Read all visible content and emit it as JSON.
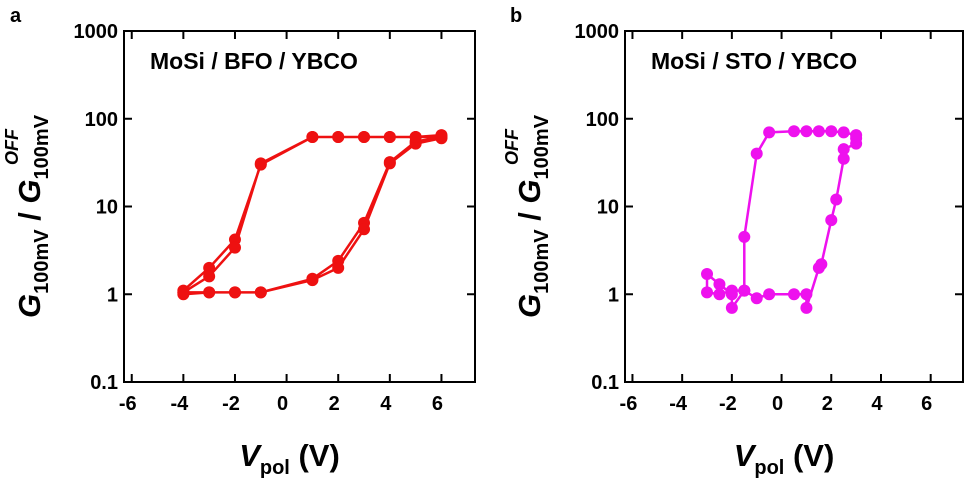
{
  "chart_data": [
    {
      "type": "line",
      "panel_label": "a",
      "title": "MoSi / BFO / YBCO",
      "x_label": [
        "V",
        "pol",
        " (V)"
      ],
      "y_label": [
        "G",
        "100mV",
        " / ",
        "G",
        "100mV",
        "OFF"
      ],
      "log_y": true,
      "xlim": [
        -6.3,
        7.3
      ],
      "ylim": [
        0.1,
        1000
      ],
      "xticks": [
        -6,
        -4,
        -2,
        0,
        2,
        4,
        6
      ],
      "yticks": [
        0.1,
        1,
        10,
        100,
        1000
      ],
      "series": [
        {
          "name": "MoSi / BFO / YBCO",
          "color": "#ee1111",
          "x": [
            6,
            5,
            4,
            3,
            2,
            1,
            -1,
            -2,
            -3,
            -4,
            -4,
            -3,
            -2,
            -1,
            1,
            2,
            3,
            4,
            5,
            6,
            6,
            5,
            4,
            3,
            2,
            1,
            -1,
            -2,
            -3,
            -4,
            -4,
            -3,
            -2,
            -1,
            1,
            2,
            3,
            4,
            5,
            6
          ],
          "values": [
            62,
            55,
            32,
            6.5,
            2.4,
            1.5,
            1.05,
            1.05,
            1.05,
            1.0,
            1.1,
            2.0,
            4.2,
            30,
            62,
            62,
            62,
            62,
            62,
            62,
            60,
            52,
            31,
            5.5,
            2.0,
            1.45,
            1.05,
            1.05,
            1.05,
            1.05,
            1.05,
            1.6,
            3.4,
            31,
            62,
            62,
            62,
            62,
            62,
            65
          ]
        }
      ]
    },
    {
      "type": "line",
      "panel_label": "b",
      "title": "MoSi / STO / YBCO",
      "x_label": [
        "V",
        "pol",
        " (V)"
      ],
      "y_label": [
        "G",
        "100mV",
        " / ",
        "G",
        "100mV",
        "OFF"
      ],
      "log_y": true,
      "xlim": [
        -6.3,
        7.3
      ],
      "ylim": [
        0.1,
        1000
      ],
      "xticks": [
        -6,
        -4,
        -2,
        0,
        2,
        4,
        6
      ],
      "yticks": [
        0.1,
        1,
        10,
        100,
        1000
      ],
      "series": [
        {
          "name": "MoSi / STO / YBCO",
          "color": "#ee11ee",
          "x": [
            3,
            3,
            2.5,
            2.5,
            2.2,
            2,
            1.6,
            1.5,
            1,
            1,
            0.5,
            -0.5,
            -1,
            -1.5,
            -2,
            -2,
            -2.5,
            -3,
            -3,
            -2.5,
            -2,
            -1.5,
            -1.5,
            -1,
            -0.5,
            0.5,
            1,
            1.5,
            2,
            2.5,
            3
          ],
          "values": [
            60,
            52,
            45,
            35,
            12,
            7,
            2.2,
            2,
            0.7,
            1,
            1,
            1,
            0.9,
            1.1,
            0.7,
            1,
            1.3,
            1.7,
            1.05,
            1,
            1.1,
            1.1,
            4.5,
            40,
            70,
            72,
            72,
            72,
            72,
            70,
            65
          ]
        }
      ]
    }
  ]
}
